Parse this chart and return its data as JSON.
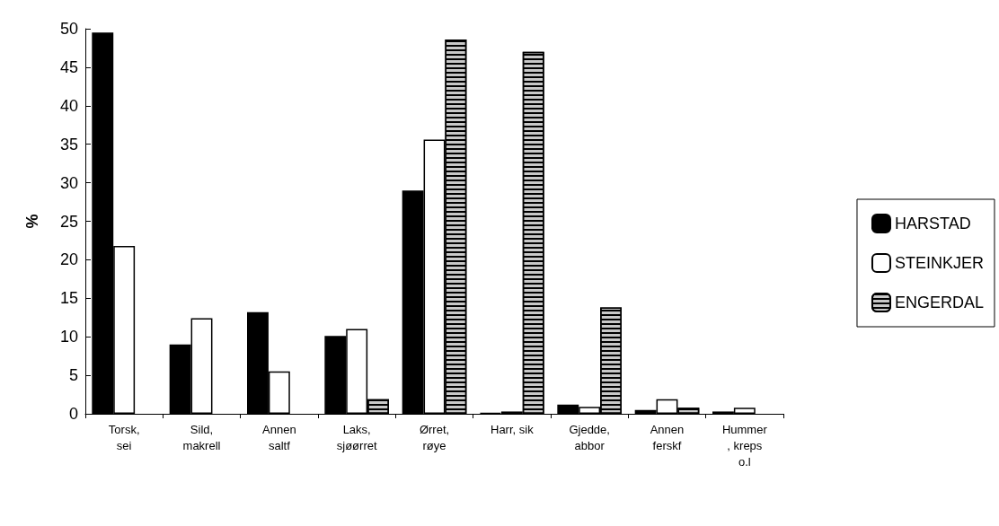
{
  "chart_data": {
    "type": "bar",
    "ylabel": "%",
    "categories": [
      "Torsk,\nsei",
      "Sild,\nmakrell",
      "Annen\nsaltf",
      "Laks,\nsjøørret",
      "Ørret,\nrøye",
      "Harr, sik",
      "Gjedde,\nabbor",
      "Annen\nferskf",
      "Hummer\n, kreps\no.l"
    ],
    "series": [
      {
        "name": "HARSTAD",
        "color": "#000000",
        "values": [
          49.5,
          9,
          13.2,
          10.1,
          29,
          0.1,
          1.2,
          0.5,
          0.3
        ]
      },
      {
        "name": "STEINKJER",
        "color": "#ffffff",
        "values": [
          21.8,
          12.4,
          5.5,
          11,
          35.6,
          0.3,
          0.9,
          1.9,
          0.8
        ]
      },
      {
        "name": "ENGERDAL",
        "color": "#c8c8c8",
        "values": [
          0,
          0,
          0,
          1.9,
          48.6,
          47,
          13.8,
          0.8,
          0
        ]
      }
    ],
    "ylim": [
      0,
      50
    ],
    "yticks": [
      0,
      5,
      10,
      15,
      20,
      25,
      30,
      35,
      40,
      45,
      50
    ],
    "grid": false,
    "legend": "right"
  }
}
